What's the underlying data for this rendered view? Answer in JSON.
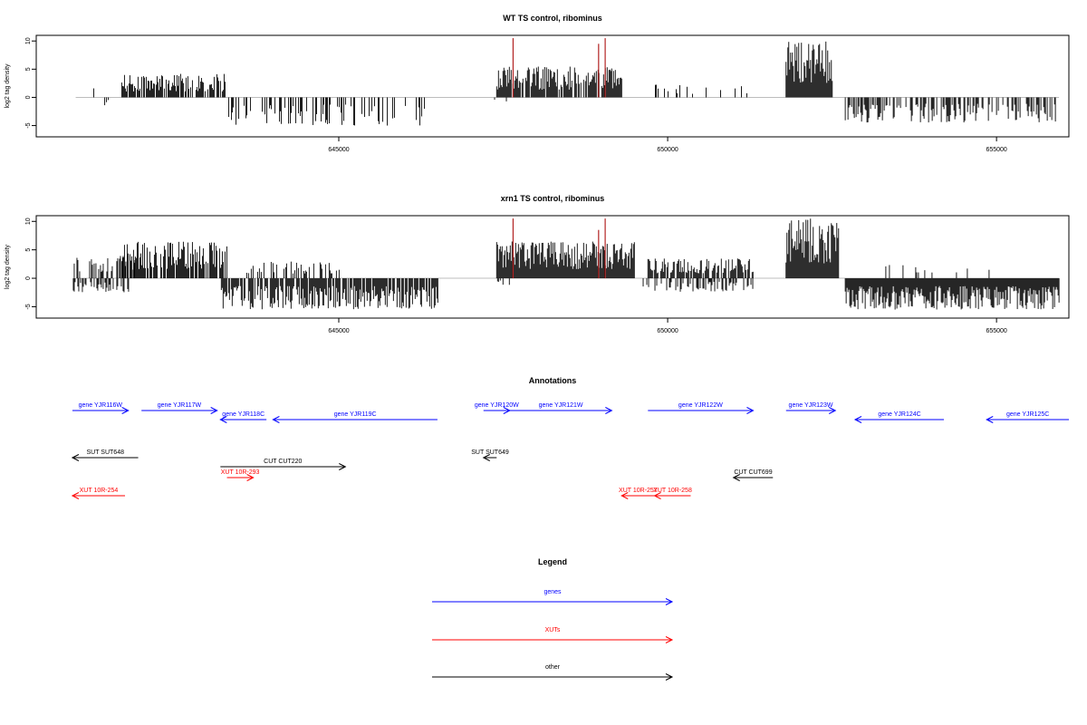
{
  "chart_data": [
    {
      "type": "bar",
      "title": "WT TS control, ribominus",
      "ylabel": "log2 tag density",
      "xlabel": "",
      "xlim": [
        640400,
        656100
      ],
      "ylim": [
        -7,
        11
      ],
      "yticks": [
        10,
        5,
        0,
        -5
      ],
      "xticks": [
        "645000",
        "650000",
        "655000"
      ],
      "xtick_values": [
        645000,
        650000,
        655000
      ],
      "positive_regions": [
        {
          "start": 641000,
          "end": 641600,
          "density": 0.15,
          "max": 3.0
        },
        {
          "start": 641700,
          "end": 643300,
          "density": 0.75,
          "max": 4.2
        },
        {
          "start": 647400,
          "end": 649300,
          "density": 0.85,
          "max": 5.5
        },
        {
          "start": 649800,
          "end": 651300,
          "density": 0.1,
          "max": 2.5
        },
        {
          "start": 651800,
          "end": 652500,
          "density": 1.0,
          "max": 10.0
        },
        {
          "start": 654500,
          "end": 654500,
          "density": 0.05,
          "max": 2.8
        }
      ],
      "negative_regions": [
        {
          "start": 641400,
          "end": 641500,
          "density": 0.1,
          "min": -1.5
        },
        {
          "start": 643300,
          "end": 646300,
          "density": 0.3,
          "min": -5.0
        },
        {
          "start": 647300,
          "end": 647600,
          "density": 0.1,
          "min": -1.0
        },
        {
          "start": 649600,
          "end": 649700,
          "density": 0.1,
          "min": -2.0
        },
        {
          "start": 651600,
          "end": 651700,
          "density": 0.1,
          "min": -2.0
        },
        {
          "start": 652700,
          "end": 655900,
          "density": 0.5,
          "min": -4.5
        }
      ],
      "highlight_spikes": [
        {
          "x": 647650,
          "y": 10.5,
          "color": "#b22222"
        },
        {
          "x": 648950,
          "y": 9.5,
          "color": "#b22222"
        },
        {
          "x": 649050,
          "y": 10.5,
          "color": "#b22222"
        }
      ]
    },
    {
      "type": "bar",
      "title": "xrn1 TS control, ribominus",
      "ylabel": "log2 tag density",
      "xlabel": "",
      "xlim": [
        640400,
        656100
      ],
      "ylim": [
        -7,
        11
      ],
      "yticks": [
        10,
        5,
        0,
        -5
      ],
      "xticks": [
        "645000",
        "650000",
        "655000"
      ],
      "xtick_values": [
        645000,
        650000,
        655000
      ],
      "positive_regions": [
        {
          "start": 640950,
          "end": 641900,
          "density": 0.4,
          "max": 4.0
        },
        {
          "start": 641700,
          "end": 643300,
          "density": 0.85,
          "max": 6.5
        },
        {
          "start": 643600,
          "end": 645000,
          "density": 0.4,
          "max": 3.0
        },
        {
          "start": 647400,
          "end": 649500,
          "density": 1.0,
          "max": 6.5
        },
        {
          "start": 649700,
          "end": 651300,
          "density": 0.7,
          "max": 3.5
        },
        {
          "start": 651800,
          "end": 652600,
          "density": 1.0,
          "max": 10.5
        },
        {
          "start": 653000,
          "end": 655000,
          "density": 0.1,
          "max": 2.5
        }
      ],
      "negative_regions": [
        {
          "start": 640950,
          "end": 641800,
          "density": 0.4,
          "min": -2.5
        },
        {
          "start": 643200,
          "end": 646500,
          "density": 0.8,
          "min": -5.5
        },
        {
          "start": 647400,
          "end": 647600,
          "density": 0.3,
          "min": -1.5
        },
        {
          "start": 649600,
          "end": 651300,
          "density": 0.4,
          "min": -2.5
        },
        {
          "start": 652700,
          "end": 655950,
          "density": 1.0,
          "min": -5.5
        }
      ],
      "highlight_spikes": [
        {
          "x": 647650,
          "y": 10.5,
          "color": "#b22222"
        },
        {
          "x": 648950,
          "y": 8.5,
          "color": "#b22222"
        },
        {
          "x": 649050,
          "y": 10.5,
          "color": "#b22222"
        }
      ]
    }
  ],
  "annotations": {
    "title": "Annotations",
    "features": [
      {
        "label": "gene YJR116W",
        "start": 640950,
        "end": 641800,
        "strand": "+",
        "row": 1,
        "color": "#0000ff"
      },
      {
        "label": "gene YJR117W",
        "start": 642000,
        "end": 643150,
        "strand": "+",
        "row": 1,
        "color": "#0000ff"
      },
      {
        "label": "gene YJR118C",
        "start": 643200,
        "end": 643900,
        "strand": "-",
        "row": 2,
        "color": "#0000ff"
      },
      {
        "label": "gene YJR119C",
        "start": 644000,
        "end": 646500,
        "strand": "-",
        "row": 2,
        "color": "#0000ff"
      },
      {
        "label": "gene YJR120W",
        "start": 647200,
        "end": 647600,
        "strand": "+",
        "row": 1,
        "color": "#0000ff"
      },
      {
        "label": "gene YJR121W",
        "start": 647600,
        "end": 649150,
        "strand": "+",
        "row": 1,
        "color": "#0000ff"
      },
      {
        "label": "gene YJR122W",
        "start": 649700,
        "end": 651300,
        "strand": "+",
        "row": 1,
        "color": "#0000ff"
      },
      {
        "label": "gene YJR123W",
        "start": 651800,
        "end": 652550,
        "strand": "+",
        "row": 1,
        "color": "#0000ff"
      },
      {
        "label": "gene YJR124C",
        "start": 652850,
        "end": 654200,
        "strand": "-",
        "row": 2,
        "color": "#0000ff"
      },
      {
        "label": "gene YJR125C",
        "start": 654850,
        "end": 656100,
        "strand": "-",
        "row": 2,
        "color": "#0000ff"
      },
      {
        "label": "SUT SUT648",
        "start": 640950,
        "end": 641950,
        "strand": "-",
        "row": 4,
        "color": "#000000"
      },
      {
        "label": "CUT CUT220",
        "start": 643200,
        "end": 645100,
        "strand": "+",
        "row": 5,
        "color": "#000000"
      },
      {
        "label": "SUT SUT649",
        "start": 647200,
        "end": 647400,
        "strand": "-",
        "row": 4,
        "color": "#000000"
      },
      {
        "label": "CUT CUT699",
        "start": 651000,
        "end": 651600,
        "strand": "-",
        "row": 6,
        "color": "#000000"
      },
      {
        "label": "XUT 10R-254",
        "start": 640950,
        "end": 641750,
        "strand": "-",
        "row": 7,
        "color": "#ff0000"
      },
      {
        "label": "XUT 10R-293",
        "start": 643300,
        "end": 643700,
        "strand": "+",
        "row": 6,
        "color": "#ff0000"
      },
      {
        "label": "XUT 10R-257",
        "start": 649300,
        "end": 649800,
        "strand": "-",
        "row": 7,
        "color": "#ff0000"
      },
      {
        "label": "XUT 10R-258",
        "start": 649800,
        "end": 650350,
        "strand": "-",
        "row": 7,
        "color": "#ff0000"
      }
    ]
  },
  "legend": {
    "title": "Legend",
    "items": [
      {
        "label": "genes",
        "color": "#0000ff"
      },
      {
        "label": "XUTs",
        "color": "#ff0000"
      },
      {
        "label": "other",
        "color": "#000000"
      }
    ]
  }
}
